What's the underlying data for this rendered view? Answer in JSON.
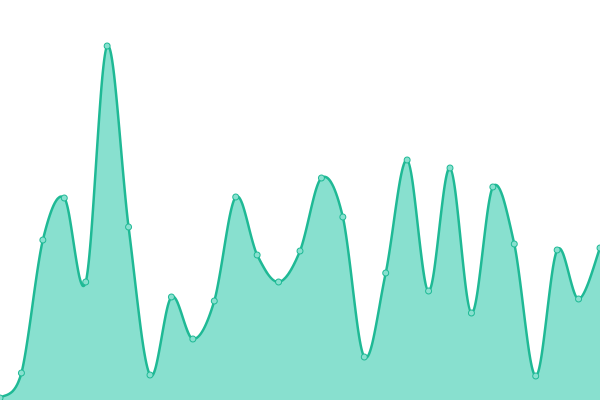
{
  "chart_data": {
    "type": "area",
    "categories": [
      null,
      null,
      null,
      null,
      null,
      null,
      null,
      null,
      null,
      null,
      null,
      null,
      null,
      null,
      null,
      null,
      null,
      null,
      null,
      null,
      null,
      null,
      null,
      null,
      null,
      null,
      null,
      null,
      null
    ],
    "series": [
      {
        "color": "#1fb995",
        "fill": "#88e0cf",
        "values": [
          2,
          27,
          160,
          202,
          118,
          354,
          173,
          25,
          103,
          61,
          99,
          203,
          145,
          118,
          149,
          222,
          183,
          43,
          127,
          240,
          109,
          232,
          87,
          213,
          156,
          24,
          150,
          101,
          152
        ]
      }
    ],
    "ylim": [
      0,
      400
    ],
    "grid": false
  }
}
